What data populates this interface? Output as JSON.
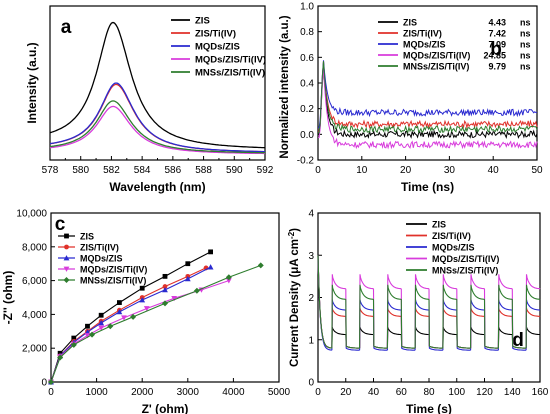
{
  "chart_data": [
    {
      "panel": "a",
      "type": "line",
      "xlabel": "Wavelength (nm)",
      "ylabel": "Intensity (a.u.)",
      "xlim": [
        578,
        592
      ],
      "x_ticks": [
        "578",
        "580",
        "582",
        "584",
        "586",
        "588",
        "590",
        "592"
      ],
      "y_ticks": [],
      "legend_position": "top-right",
      "series": [
        {
          "name": "ZIS",
          "color": "#000000",
          "peak_x": 582.1,
          "peak_y": 1.0,
          "start_y": 0.12,
          "end_y": 0.07,
          "left_width": 1.28,
          "right_width": 1.45
        },
        {
          "name": "ZIS/Ti(IV)",
          "color": "#e0312a",
          "peak_x": 582.3,
          "peak_y": 0.55,
          "start_y": 0.08,
          "end_y": 0.05,
          "left_width": 1.28,
          "right_width": 1.45
        },
        {
          "name": "MQDs/ZIS",
          "color": "#2a2ad0",
          "peak_x": 582.3,
          "peak_y": 0.56,
          "start_y": 0.08,
          "end_y": 0.05,
          "left_width": 1.28,
          "right_width": 1.45
        },
        {
          "name": "MQDs/ZIS/Ti(IV)",
          "color": "#d83cdc",
          "peak_x": 582.1,
          "peak_y": 0.39,
          "start_y": 0.06,
          "end_y": 0.04,
          "left_width": 1.28,
          "right_width": 1.45
        },
        {
          "name": "MNSs/ZIS/Ti(IV)",
          "color": "#2e7d2e",
          "peak_x": 582.1,
          "peak_y": 0.43,
          "start_y": 0.065,
          "end_y": 0.045,
          "left_width": 1.28,
          "right_width": 1.45
        }
      ]
    },
    {
      "panel": "b",
      "type": "line",
      "xlabel": "Time (ns)",
      "ylabel": "Normalized intensity (a.u.)",
      "xlim": [
        0,
        50
      ],
      "ylim": [
        -0.2,
        1.0
      ],
      "x_ticks": [
        "0",
        "10",
        "20",
        "30",
        "40",
        "50"
      ],
      "y_ticks": [
        "-0.2",
        "0.0",
        "0.2",
        "0.4",
        "0.6",
        "0.8",
        "1.0"
      ],
      "legend_position": "top-right",
      "series": [
        {
          "name": "ZIS",
          "lifetime": "4.43",
          "unit": "ns",
          "color": "#000000",
          "peak": 0.55,
          "baseline": 0.0
        },
        {
          "name": "ZIS/Ti(IV)",
          "lifetime": "7.42",
          "unit": "ns",
          "color": "#e0312a",
          "peak": 0.6,
          "baseline": 0.08
        },
        {
          "name": "MQDs/ZIS",
          "lifetime": "7.09",
          "unit": "ns",
          "color": "#2a2ad0",
          "peak": 0.6,
          "baseline": 0.17
        },
        {
          "name": "MQDs/ZIS/Ti(IV)",
          "lifetime": "24.85",
          "unit": "ns",
          "color": "#d83cdc",
          "peak": 0.55,
          "baseline": -0.08
        },
        {
          "name": "MNSs/ZIS/Ti(IV)",
          "lifetime": "9.79",
          "unit": "ns",
          "color": "#2e7d2e",
          "peak": 0.6,
          "baseline": 0.04
        }
      ]
    },
    {
      "panel": "c",
      "type": "scatter",
      "xlabel": "Z' (ohm)",
      "ylabel": "-Z'' (ohm)",
      "xlim": [
        0,
        5000
      ],
      "ylim": [
        0,
        10000
      ],
      "x_ticks": [
        "0",
        "1000",
        "2000",
        "3000",
        "4000",
        "5000"
      ],
      "y_ticks": [
        "0",
        "2,000",
        "4,000",
        "6,000",
        "8,000",
        "10,000"
      ],
      "legend_position": "top-left",
      "series": [
        {
          "name": "ZIS",
          "color": "#000000",
          "marker": "square",
          "x": [
            0,
            200,
            500,
            800,
            1100,
            1500,
            2000,
            2500,
            3000,
            3500
          ],
          "y": [
            0,
            1700,
            2600,
            3300,
            3950,
            4700,
            5550,
            6250,
            7000,
            7700
          ]
        },
        {
          "name": "ZIS/Ti(IV)",
          "color": "#e0312a",
          "marker": "circle",
          "x": [
            0,
            200,
            500,
            800,
            1100,
            1500,
            2000,
            2500,
            3000,
            3400
          ],
          "y": [
            0,
            1550,
            2400,
            3000,
            3600,
            4250,
            5000,
            5650,
            6250,
            6750
          ]
        },
        {
          "name": "MQDs/ZIS",
          "color": "#2a2ad0",
          "marker": "triangle-up",
          "x": [
            0,
            200,
            500,
            800,
            1100,
            1500,
            2000,
            2500,
            3000,
            3500
          ],
          "y": [
            0,
            1550,
            2350,
            2950,
            3500,
            4150,
            4850,
            5450,
            6100,
            6800
          ]
        },
        {
          "name": "MQDs/ZIS/Ti(IV)",
          "color": "#d83cdc",
          "marker": "triangle-down",
          "x": [
            0,
            200,
            500,
            800,
            1100,
            1600,
            2100,
            2700,
            3300,
            3900
          ],
          "y": [
            0,
            1500,
            2250,
            2750,
            3200,
            3800,
            4350,
            4950,
            5450,
            6000
          ]
        },
        {
          "name": "MNSs/ZIS/Ti(IV)",
          "color": "#2e7d2e",
          "marker": "diamond",
          "x": [
            0,
            200,
            500,
            900,
            1300,
            1800,
            2500,
            3200,
            3900,
            4600
          ],
          "y": [
            0,
            1450,
            2200,
            2800,
            3300,
            3850,
            4650,
            5400,
            6200,
            6900
          ]
        }
      ]
    },
    {
      "panel": "d",
      "type": "line",
      "xlabel": "Time (s)",
      "ylabel": "Current Density (μA cm",
      "ylabel_sup": "-2",
      "ylabel_end": ")",
      "xlim": [
        0,
        160
      ],
      "ylim": [
        0,
        4
      ],
      "x_ticks": [
        "0",
        "20",
        "40",
        "60",
        "80",
        "100",
        "120",
        "140",
        "160"
      ],
      "y_ticks": [
        "0",
        "1",
        "2",
        "3",
        "4"
      ],
      "legend_position": "top-right",
      "series": [
        {
          "name": "ZIS",
          "color": "#000000",
          "on": 1.3,
          "off": 0.8,
          "initial": 3.0,
          "on_end": 1.12
        },
        {
          "name": "ZIS/Ti(IV)",
          "color": "#e0312a",
          "on": 1.75,
          "off": 0.8,
          "initial": 3.0,
          "on_end": 1.55
        },
        {
          "name": "MQDs/ZIS",
          "color": "#2a2ad0",
          "on": 1.95,
          "off": 0.75,
          "initial": 3.0,
          "on_end": 1.7
        },
        {
          "name": "MQDs/ZIS/Ti(IV)",
          "color": "#d83cdc",
          "on": 2.55,
          "off": 0.8,
          "initial": 3.0,
          "on_end": 2.2
        },
        {
          "name": "MNSs/ZIS/Ti(IV)",
          "color": "#2e7d2e",
          "on": 2.3,
          "off": 0.8,
          "initial": 3.0,
          "on_end": 1.95
        }
      ]
    }
  ]
}
